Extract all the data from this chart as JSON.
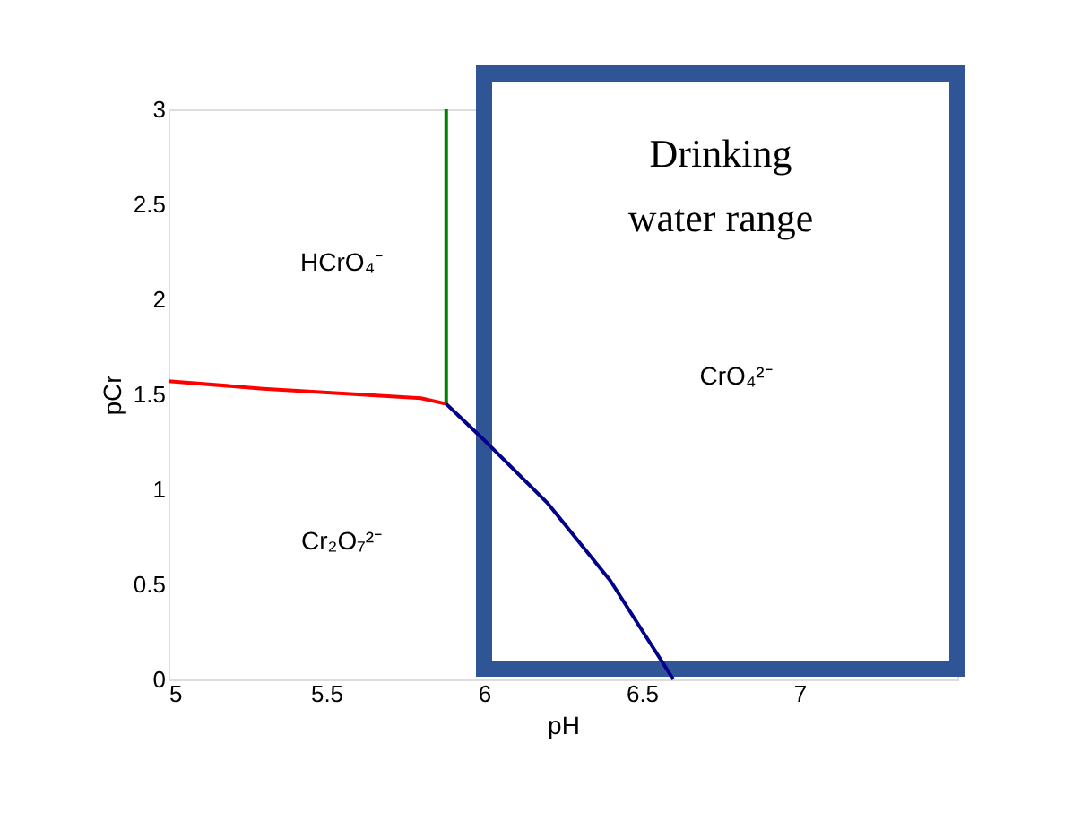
{
  "chart_data": {
    "type": "line",
    "xlabel": "pH",
    "ylabel": "pCr",
    "xlim": [
      5,
      7.5
    ],
    "ylim": [
      0,
      3
    ],
    "xticks": [
      5,
      5.5,
      6,
      6.5,
      7
    ],
    "yticks": [
      0,
      0.5,
      1,
      1.5,
      2,
      2.5,
      3
    ],
    "grid": false,
    "marker": "none",
    "line_style": "solid",
    "series": [
      {
        "color": "#ff0000",
        "x": [
          5,
          5.3,
          5.6,
          5.8,
          5.88
        ],
        "values": [
          1.57,
          1.53,
          1.5,
          1.48,
          1.45
        ]
      },
      {
        "color": "#008000",
        "x": [
          5.88,
          5.88
        ],
        "values": [
          1.45,
          3
        ]
      },
      {
        "color": "#00008b",
        "x": [
          5.88,
          6.0,
          6.2,
          6.4,
          6.6
        ],
        "values": [
          1.45,
          1.26,
          0.93,
          0.52,
          0
        ]
      }
    ],
    "bands": [
      {
        "axis": "x",
        "from": 6.0,
        "to": 7.5,
        "label": "Drinking water range",
        "color": "#2f5597"
      }
    ],
    "annotations": [
      "HCrO₄⁻",
      "CrO₄²⁻",
      "Cr₂O₇²⁻"
    ]
  }
}
